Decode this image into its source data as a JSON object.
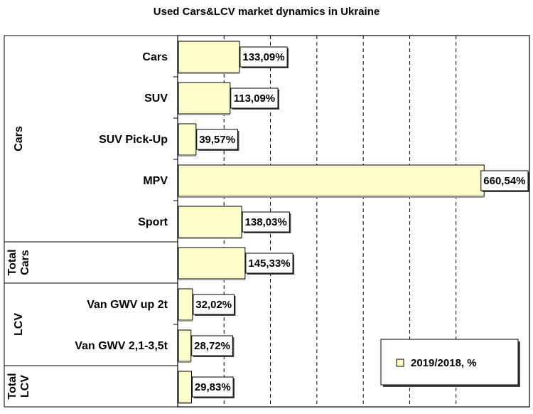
{
  "chart_data": {
    "type": "bar",
    "orientation": "horizontal",
    "title": "Used Cars&LCV market dynamics in Ukraine",
    "categories": [
      "Cars",
      "SUV",
      "SUV Pick-Up",
      "MPV",
      "Sport",
      "",
      "Van GWV up 2t",
      "Van GWV 2,1-3,5t",
      ""
    ],
    "groups": [
      {
        "label": "Cars",
        "start": 0,
        "end": 4
      },
      {
        "label": "Total Cars",
        "lines": [
          "Total",
          "Cars"
        ],
        "start": 5,
        "end": 5
      },
      {
        "label": "LCV",
        "start": 6,
        "end": 7
      },
      {
        "label": "Total LCV",
        "lines": [
          "Total",
          "LCV"
        ],
        "start": 8,
        "end": 8
      }
    ],
    "series": [
      {
        "name": "2019/2018, %",
        "color": "#ffffcc",
        "values": [
          133.09,
          113.09,
          39.57,
          660.54,
          138.03,
          145.33,
          32.02,
          28.72,
          29.83
        ],
        "labels": [
          "133,09%",
          "113,09%",
          "39,57%",
          "660,54%",
          "138,03%",
          "145,33%",
          "32,02%",
          "28,72%",
          "29,83%"
        ]
      }
    ],
    "xlim": [
      0,
      700
    ],
    "grid": true,
    "legend_position": "bottom-right"
  }
}
